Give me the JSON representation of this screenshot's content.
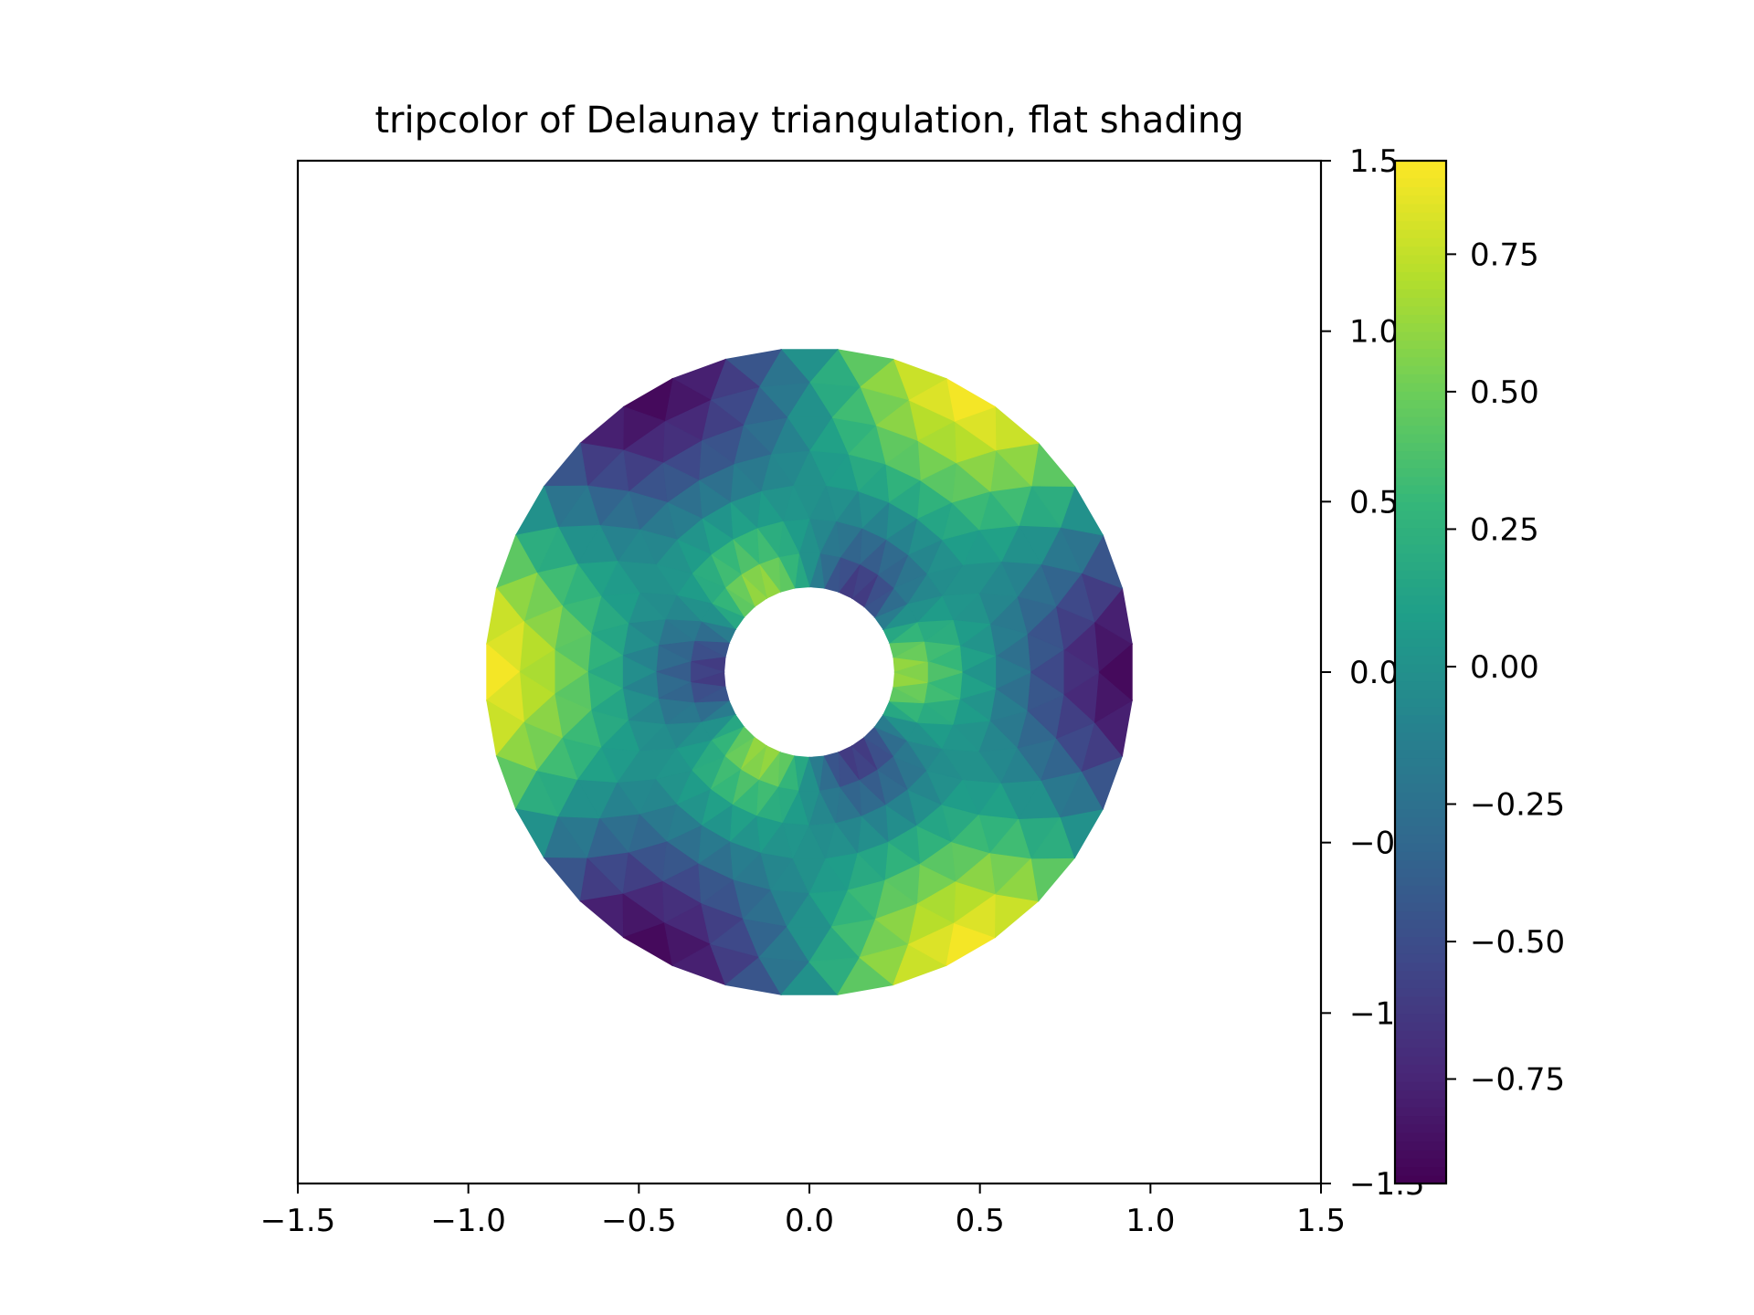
{
  "chart_data": {
    "type": "heatmap",
    "subtype": "tripcolor",
    "title": "tripcolor of Delaunay triangulation, flat shading",
    "xlabel": "",
    "ylabel": "",
    "xlim": [
      -1.5,
      1.5
    ],
    "ylim": [
      -1.5,
      1.5
    ],
    "x_ticks": [
      -1.5,
      -1.0,
      -0.5,
      0.0,
      0.5,
      1.0,
      1.5
    ],
    "x_tick_labels": [
      "−1.5",
      "−1.0",
      "−0.5",
      "0.0",
      "0.5",
      "1.0",
      "1.5"
    ],
    "y_ticks": [
      -1.5,
      -1.0,
      -0.5,
      0.0,
      0.5,
      1.0,
      1.5
    ],
    "y_tick_labels": [
      "−1.5",
      "−1.0",
      "−0.5",
      "0.0",
      "0.5",
      "1.0",
      "1.5"
    ],
    "grid": false,
    "mesh": {
      "n_radii": 8,
      "n_angles": 36,
      "min_radius": 0.25,
      "max_radius": 0.95,
      "value_function": "cos(3*angle) * cos(3*radius)",
      "value_range": [
        -0.94,
        0.92
      ]
    },
    "colorbar": {
      "colormap": "viridis",
      "range": [
        -0.94,
        0.92
      ],
      "ticks": [
        -0.75,
        -0.5,
        -0.25,
        0.0,
        0.25,
        0.5,
        0.75
      ],
      "tick_labels": [
        "−0.75",
        "−0.50",
        "−0.25",
        "0.00",
        "0.25",
        "0.50",
        "0.75"
      ],
      "location": "right"
    },
    "colors": {
      "viridis_stops": [
        "#440154",
        "#482878",
        "#3e4989",
        "#31688e",
        "#26828e",
        "#1f9e89",
        "#35b779",
        "#6ece58",
        "#b5de2b",
        "#fde725"
      ]
    }
  }
}
